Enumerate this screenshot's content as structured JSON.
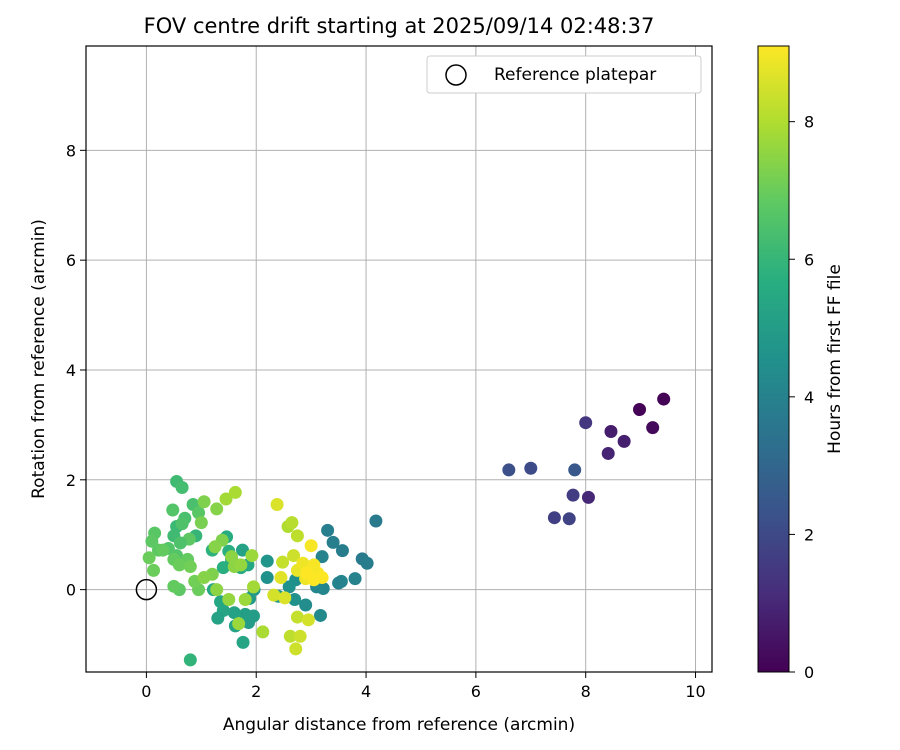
{
  "chart_data": {
    "type": "scatter",
    "title": "FOV centre drift starting at 2025/09/14 02:48:37",
    "xlabel": "Angular distance from reference (arcmin)",
    "ylabel": "Rotation from reference (arcmin)",
    "xlim": [
      -1.1,
      10.3
    ],
    "ylim": [
      -1.5,
      9.9
    ],
    "xticks": [
      0,
      2,
      4,
      6,
      8,
      10
    ],
    "yticks": [
      0,
      2,
      4,
      6,
      8
    ],
    "grid": true,
    "legend": {
      "position": "top-right",
      "entries": [
        "Reference platepar"
      ]
    },
    "reference_point": {
      "x": 0,
      "y": 0
    },
    "colorbar": {
      "label": "Hours from first FF file",
      "colormap": "viridis",
      "range": [
        0,
        9.1
      ],
      "ticks": [
        0,
        2,
        4,
        6,
        8
      ]
    },
    "points": [
      {
        "x": 8.98,
        "y": 3.28,
        "c": 0.05
      },
      {
        "x": 9.42,
        "y": 3.47,
        "c": 0.1
      },
      {
        "x": 9.22,
        "y": 2.95,
        "c": 0.2
      },
      {
        "x": 8.46,
        "y": 2.88,
        "c": 0.7
      },
      {
        "x": 8.7,
        "y": 2.7,
        "c": 0.8
      },
      {
        "x": 8.41,
        "y": 2.48,
        "c": 0.9
      },
      {
        "x": 8.05,
        "y": 1.68,
        "c": 1.0
      },
      {
        "x": 8.0,
        "y": 3.04,
        "c": 1.4
      },
      {
        "x": 7.77,
        "y": 1.72,
        "c": 1.6
      },
      {
        "x": 7.43,
        "y": 1.31,
        "c": 1.7
      },
      {
        "x": 7.7,
        "y": 1.29,
        "c": 1.8
      },
      {
        "x": 7.0,
        "y": 2.21,
        "c": 2.1
      },
      {
        "x": 6.6,
        "y": 2.18,
        "c": 2.2
      },
      {
        "x": 7.8,
        "y": 2.18,
        "c": 2.5
      },
      {
        "x": 4.18,
        "y": 1.25,
        "c": 3.7
      },
      {
        "x": 3.3,
        "y": 1.08,
        "c": 3.9
      },
      {
        "x": 3.4,
        "y": 0.86,
        "c": 3.9
      },
      {
        "x": 3.57,
        "y": 0.71,
        "c": 3.8
      },
      {
        "x": 3.93,
        "y": 0.56,
        "c": 3.7
      },
      {
        "x": 4.02,
        "y": 0.48,
        "c": 3.8
      },
      {
        "x": 3.2,
        "y": 0.6,
        "c": 4.0
      },
      {
        "x": 3.8,
        "y": 0.2,
        "c": 4.0
      },
      {
        "x": 3.55,
        "y": 0.15,
        "c": 4.1
      },
      {
        "x": 3.5,
        "y": 0.12,
        "c": 4.0
      },
      {
        "x": 3.22,
        "y": 0.02,
        "c": 4.1
      },
      {
        "x": 3.1,
        "y": 0.05,
        "c": 4.2
      },
      {
        "x": 3.17,
        "y": -0.47,
        "c": 4.3
      },
      {
        "x": 2.9,
        "y": -0.28,
        "c": 4.4
      },
      {
        "x": 2.7,
        "y": -0.18,
        "c": 4.6
      },
      {
        "x": 2.4,
        "y": -0.12,
        "c": 4.8
      },
      {
        "x": 2.2,
        "y": 0.22,
        "c": 4.6
      },
      {
        "x": 2.2,
        "y": 0.52,
        "c": 4.7
      },
      {
        "x": 2.72,
        "y": 0.18,
        "c": 4.5
      },
      {
        "x": 2.6,
        "y": 0.05,
        "c": 4.6
      },
      {
        "x": 1.96,
        "y": 0.0,
        "c": 4.8
      },
      {
        "x": 1.88,
        "y": -0.16,
        "c": 4.9
      },
      {
        "x": 1.95,
        "y": -0.48,
        "c": 5.0
      },
      {
        "x": 1.86,
        "y": -0.6,
        "c": 5.0
      },
      {
        "x": 1.8,
        "y": -0.45,
        "c": 5.1
      },
      {
        "x": 1.6,
        "y": -0.42,
        "c": 5.2
      },
      {
        "x": 1.62,
        "y": -0.66,
        "c": 5.2
      },
      {
        "x": 1.76,
        "y": -0.96,
        "c": 5.3
      },
      {
        "x": 1.4,
        "y": -0.38,
        "c": 5.3
      },
      {
        "x": 1.35,
        "y": -0.22,
        "c": 5.4
      },
      {
        "x": 1.3,
        "y": -0.52,
        "c": 5.2
      },
      {
        "x": 1.22,
        "y": 0.0,
        "c": 5.4
      },
      {
        "x": 1.75,
        "y": 0.72,
        "c": 5.2
      },
      {
        "x": 1.55,
        "y": 0.55,
        "c": 5.4
      },
      {
        "x": 1.72,
        "y": 0.4,
        "c": 5.5
      },
      {
        "x": 1.85,
        "y": 0.45,
        "c": 5.4
      },
      {
        "x": 1.46,
        "y": 0.96,
        "c": 5.6
      },
      {
        "x": 1.5,
        "y": 0.7,
        "c": 5.7
      },
      {
        "x": 1.4,
        "y": 0.4,
        "c": 5.7
      },
      {
        "x": 1.2,
        "y": 0.72,
        "c": 5.8
      },
      {
        "x": 0.8,
        "y": -1.28,
        "c": 5.9
      },
      {
        "x": 0.9,
        "y": 0.98,
        "c": 6.0
      },
      {
        "x": 0.55,
        "y": 1.97,
        "c": 6.2
      },
      {
        "x": 0.65,
        "y": 1.86,
        "c": 6.3
      },
      {
        "x": 0.55,
        "y": 1.15,
        "c": 6.1
      },
      {
        "x": 0.5,
        "y": 0.98,
        "c": 6.2
      },
      {
        "x": 0.7,
        "y": 1.3,
        "c": 6.4
      },
      {
        "x": 0.85,
        "y": 1.55,
        "c": 6.4
      },
      {
        "x": 0.65,
        "y": 1.2,
        "c": 6.5
      },
      {
        "x": 0.48,
        "y": 1.45,
        "c": 6.6
      },
      {
        "x": 0.95,
        "y": 1.4,
        "c": 6.7
      },
      {
        "x": 0.78,
        "y": 0.92,
        "c": 6.8
      },
      {
        "x": 0.62,
        "y": 0.85,
        "c": 6.5
      },
      {
        "x": 0.4,
        "y": 0.75,
        "c": 6.6
      },
      {
        "x": 0.55,
        "y": 0.62,
        "c": 6.6
      },
      {
        "x": 0.15,
        "y": 1.03,
        "c": 6.7
      },
      {
        "x": 0.1,
        "y": 0.88,
        "c": 6.8
      },
      {
        "x": 0.22,
        "y": 0.72,
        "c": 6.8
      },
      {
        "x": 0.3,
        "y": 0.72,
        "c": 6.9
      },
      {
        "x": 0.05,
        "y": 0.58,
        "c": 7.0
      },
      {
        "x": 0.13,
        "y": 0.35,
        "c": 7.0
      },
      {
        "x": 0.5,
        "y": 0.55,
        "c": 6.9
      },
      {
        "x": 0.75,
        "y": 0.55,
        "c": 6.9
      },
      {
        "x": 0.6,
        "y": 0.45,
        "c": 7.0
      },
      {
        "x": 0.8,
        "y": 0.42,
        "c": 7.1
      },
      {
        "x": 0.6,
        "y": 0.0,
        "c": 6.8
      },
      {
        "x": 0.5,
        "y": 0.06,
        "c": 6.9
      },
      {
        "x": 0.95,
        "y": 0.0,
        "c": 7.0
      },
      {
        "x": 0.88,
        "y": 0.15,
        "c": 7.1
      },
      {
        "x": 1.0,
        "y": 1.22,
        "c": 7.2
      },
      {
        "x": 1.05,
        "y": 1.6,
        "c": 7.3
      },
      {
        "x": 1.28,
        "y": 1.47,
        "c": 7.4
      },
      {
        "x": 1.38,
        "y": 0.9,
        "c": 7.3
      },
      {
        "x": 1.25,
        "y": 0.78,
        "c": 7.4
      },
      {
        "x": 1.2,
        "y": 0.28,
        "c": 7.3
      },
      {
        "x": 1.05,
        "y": 0.22,
        "c": 7.4
      },
      {
        "x": 1.28,
        "y": 0.0,
        "c": 7.5
      },
      {
        "x": 1.5,
        "y": -0.18,
        "c": 7.6
      },
      {
        "x": 1.6,
        "y": 0.42,
        "c": 7.5
      },
      {
        "x": 1.72,
        "y": 0.45,
        "c": 7.6
      },
      {
        "x": 1.55,
        "y": 0.6,
        "c": 7.5
      },
      {
        "x": 1.68,
        "y": -0.62,
        "c": 7.7
      },
      {
        "x": 1.8,
        "y": -0.18,
        "c": 7.7
      },
      {
        "x": 1.92,
        "y": 0.62,
        "c": 7.7
      },
      {
        "x": 1.95,
        "y": 0.05,
        "c": 7.8
      },
      {
        "x": 1.45,
        "y": 1.65,
        "c": 7.8
      },
      {
        "x": 1.62,
        "y": 1.77,
        "c": 7.9
      },
      {
        "x": 2.12,
        "y": -0.77,
        "c": 7.9
      },
      {
        "x": 2.58,
        "y": 1.15,
        "c": 8.0
      },
      {
        "x": 2.65,
        "y": 1.22,
        "c": 8.1
      },
      {
        "x": 2.75,
        "y": 0.98,
        "c": 8.2
      },
      {
        "x": 2.48,
        "y": 0.5,
        "c": 8.3
      },
      {
        "x": 2.68,
        "y": 0.62,
        "c": 8.4
      },
      {
        "x": 2.62,
        "y": -0.85,
        "c": 8.2
      },
      {
        "x": 2.75,
        "y": -0.5,
        "c": 8.3
      },
      {
        "x": 2.8,
        "y": -0.85,
        "c": 8.4
      },
      {
        "x": 2.72,
        "y": -1.08,
        "c": 8.4
      },
      {
        "x": 2.95,
        "y": -0.55,
        "c": 8.5
      },
      {
        "x": 2.38,
        "y": 1.55,
        "c": 8.6
      },
      {
        "x": 2.32,
        "y": -0.1,
        "c": 8.5
      },
      {
        "x": 2.52,
        "y": -0.15,
        "c": 8.6
      },
      {
        "x": 2.45,
        "y": 0.22,
        "c": 8.7
      },
      {
        "x": 2.75,
        "y": 0.35,
        "c": 8.8
      },
      {
        "x": 2.85,
        "y": 0.48,
        "c": 8.9
      },
      {
        "x": 2.9,
        "y": 0.2,
        "c": 8.9
      },
      {
        "x": 3.0,
        "y": 0.8,
        "c": 9.0
      },
      {
        "x": 3.05,
        "y": 0.45,
        "c": 9.0
      },
      {
        "x": 3.12,
        "y": 0.3,
        "c": 9.0
      },
      {
        "x": 3.2,
        "y": 0.22,
        "c": 9.1
      },
      {
        "x": 3.05,
        "y": 0.18,
        "c": 9.1
      },
      {
        "x": 2.92,
        "y": 0.3,
        "c": 9.1
      }
    ]
  }
}
